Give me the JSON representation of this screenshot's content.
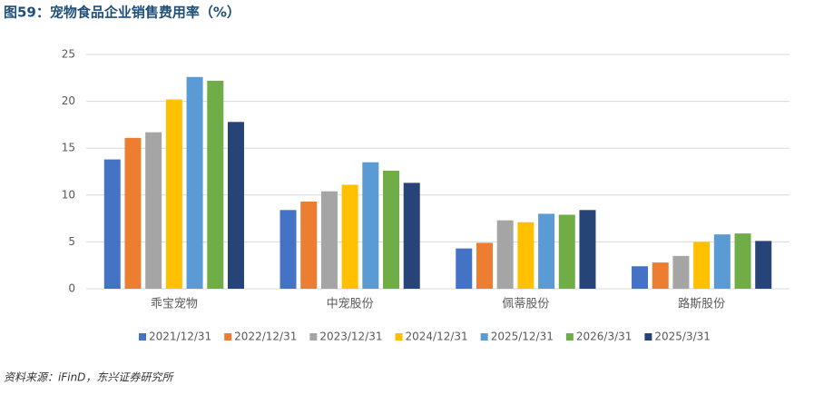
{
  "chart_data": {
    "type": "bar",
    "title": "图59：宠物食品企业销售费用率（%）",
    "categories": [
      "乖宝宠物",
      "中宠股份",
      "佩蒂股份",
      "路斯股份"
    ],
    "series": [
      {
        "name": "2021/12/31",
        "color": "#4472c4",
        "values": [
          13.8,
          8.4,
          4.3,
          2.4
        ]
      },
      {
        "name": "2022/12/31",
        "color": "#ed7d31",
        "values": [
          16.1,
          9.3,
          4.9,
          2.8
        ]
      },
      {
        "name": "2023/12/31",
        "color": "#a5a5a5",
        "values": [
          16.7,
          10.4,
          7.3,
          3.5
        ]
      },
      {
        "name": "2024/12/31",
        "color": "#ffc000",
        "values": [
          20.2,
          11.1,
          7.1,
          5.0
        ]
      },
      {
        "name": "2025/12/31",
        "color": "#5b9bd5",
        "values": [
          22.6,
          13.5,
          8.0,
          5.8
        ]
      },
      {
        "name": "2026/3/31",
        "color": "#70ad47",
        "values": [
          22.2,
          12.6,
          7.9,
          5.9
        ]
      },
      {
        "name": "2025/3/31",
        "color": "#264478",
        "values": [
          17.8,
          11.3,
          8.4,
          5.1
        ]
      }
    ],
    "ylim": [
      0,
      25
    ],
    "yticks": [
      0,
      5,
      10,
      15,
      20,
      25
    ],
    "grid": true,
    "legend": "bottom",
    "source": "资料来源：iFinD，东兴证券研究所"
  }
}
